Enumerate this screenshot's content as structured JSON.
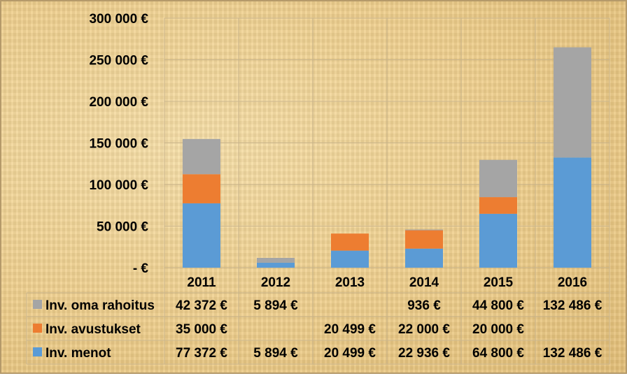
{
  "chart_data": {
    "type": "bar",
    "stacked": true,
    "categories": [
      "2011",
      "2012",
      "2013",
      "2014",
      "2015",
      "2016"
    ],
    "ylim": [
      0,
      300000
    ],
    "yticks": [
      {
        "value": 0,
        "label": "-   €"
      },
      {
        "value": 50000,
        "label": "50 000 €"
      },
      {
        "value": 100000,
        "label": "100 000 €"
      },
      {
        "value": 150000,
        "label": "150 000 €"
      },
      {
        "value": 200000,
        "label": "200 000 €"
      },
      {
        "value": 250000,
        "label": "250 000 €"
      },
      {
        "value": 300000,
        "label": "300 000 €"
      }
    ],
    "grid": true,
    "legend": "data-table",
    "series": [
      {
        "name": "Inv. menot",
        "color": "#5b9bd5",
        "values": [
          77372,
          5894,
          20499,
          22936,
          64800,
          132486
        ],
        "labels": [
          "77 372 €",
          "5 894 €",
          "20 499 €",
          "22 936 €",
          "64 800 €",
          "132 486 €"
        ]
      },
      {
        "name": "Inv. avustukset",
        "color": "#ed7d31",
        "values": [
          35000,
          0,
          20499,
          22000,
          20000,
          0
        ],
        "labels": [
          "35 000 €",
          "",
          "20 499 €",
          "22 000 €",
          "20 000 €",
          ""
        ]
      },
      {
        "name": "Inv. oma rahoitus",
        "color": "#a5a5a5",
        "values": [
          42372,
          5894,
          0,
          936,
          44800,
          132486
        ],
        "labels": [
          "42 372 €",
          "5 894 €",
          "",
          "936 €",
          "44 800 €",
          "132 486 €"
        ]
      }
    ],
    "table_rows": [
      "Inv. oma rahoitus",
      "Inv. avustukset",
      "Inv. menot"
    ]
  }
}
